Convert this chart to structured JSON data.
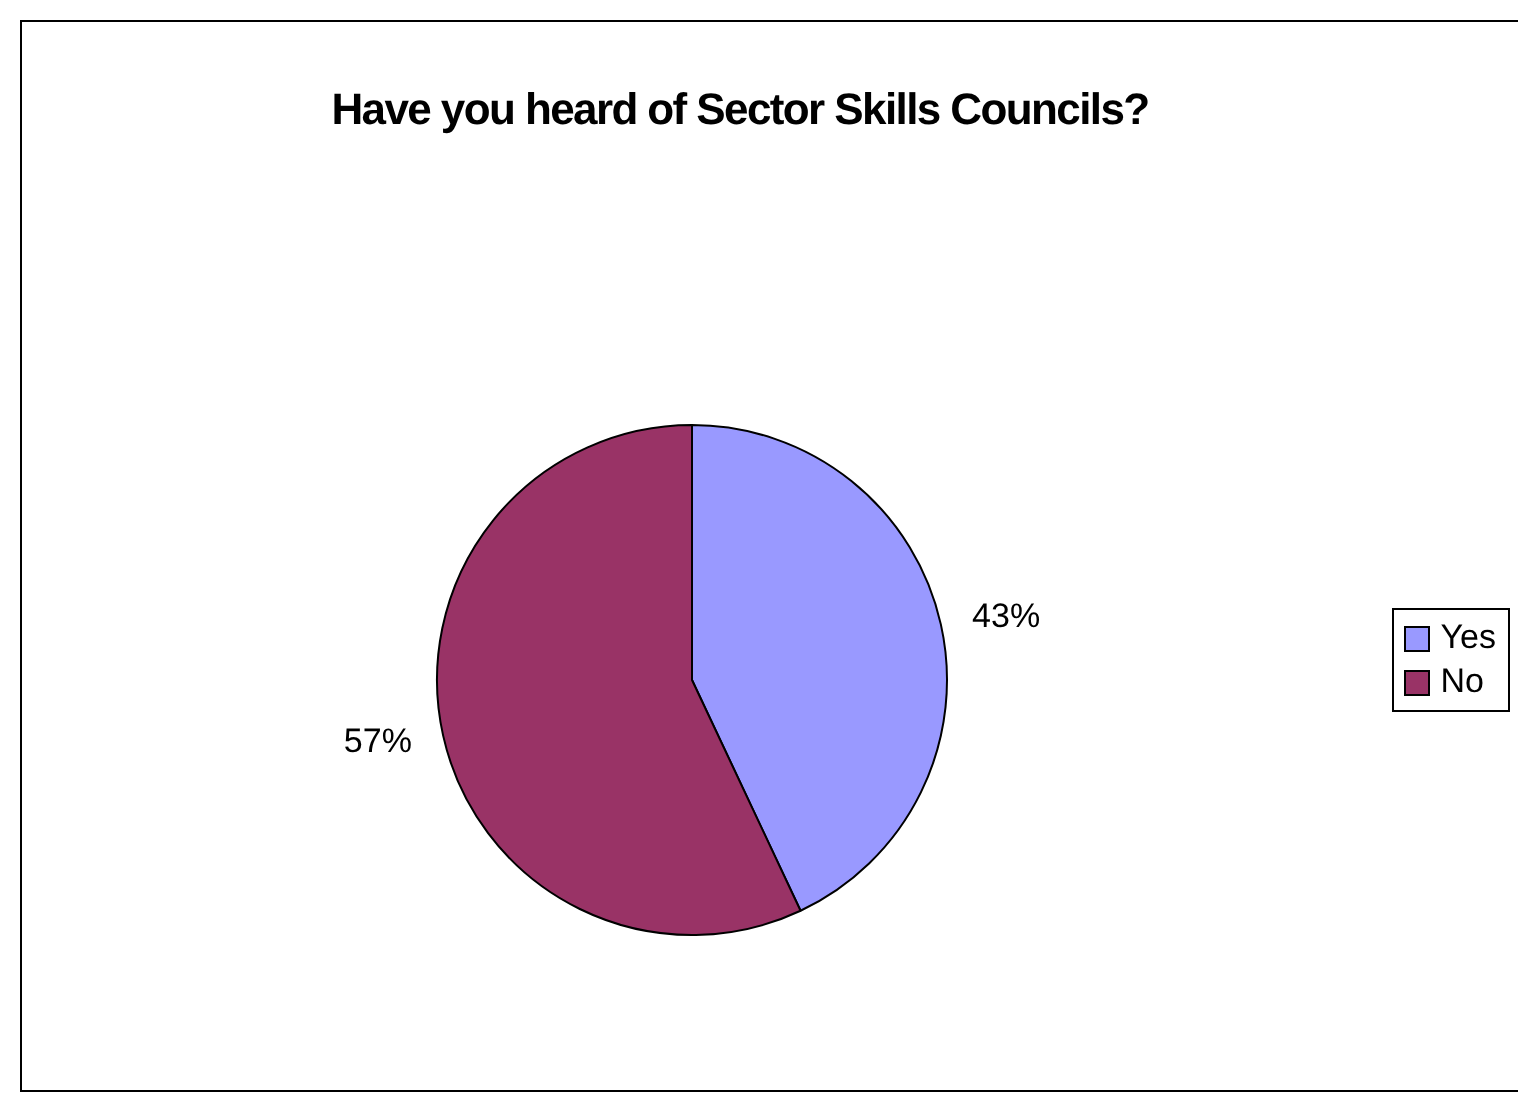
{
  "chart_data": {
    "type": "pie",
    "title": "Have you heard of Sector Skills Councils?",
    "categories": [
      "Yes",
      "No"
    ],
    "values": [
      43,
      57
    ],
    "colors": [
      "#9999ff",
      "#993366"
    ],
    "value_labels": [
      "43%",
      "57%"
    ],
    "legend": "right"
  }
}
